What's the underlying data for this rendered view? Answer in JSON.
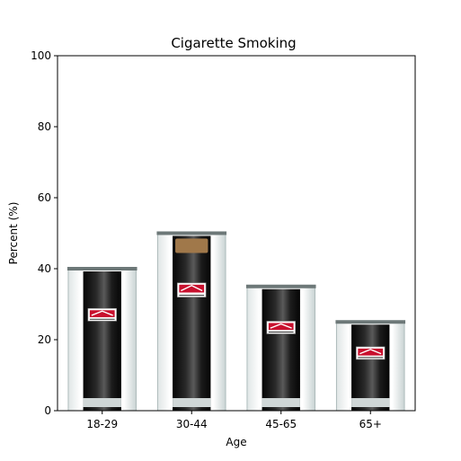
{
  "chart_data": {
    "type": "bar",
    "title": "Cigarette Smoking",
    "xlabel": "Age",
    "ylabel": "Percent (%)",
    "categories": [
      "18-29",
      "30-44",
      "45-65",
      "65+"
    ],
    "values": [
      40,
      50,
      35,
      25
    ],
    "ylim": [
      0,
      100
    ],
    "yticks": [
      0,
      20,
      40,
      60,
      80,
      100
    ],
    "grid": false,
    "legend": "none",
    "colors": {
      "bar_body": "#141414",
      "bar_glass": "#eef2f2",
      "label_red": "#c8102e",
      "filter_tan": "#a0784a"
    }
  }
}
